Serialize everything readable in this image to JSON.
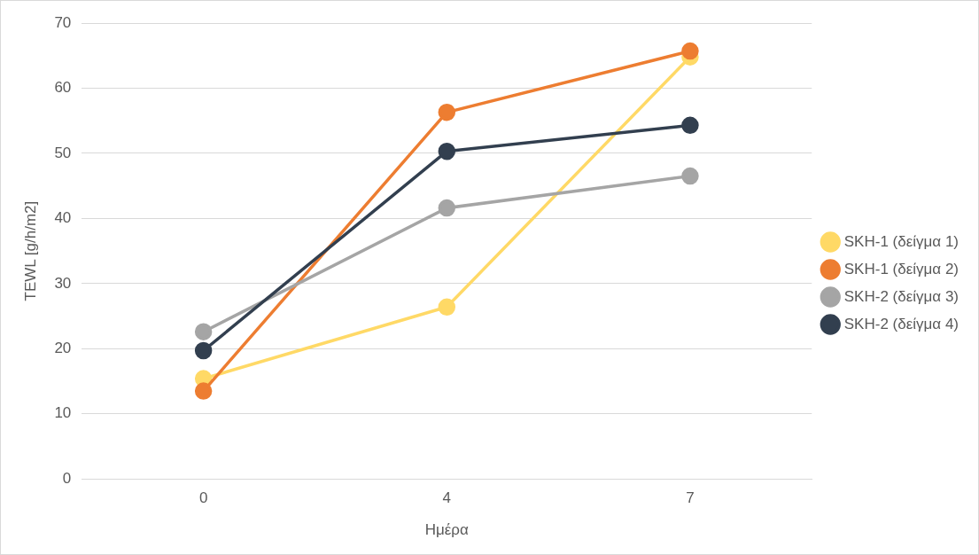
{
  "chart_data": {
    "type": "line",
    "xlabel": "Ημέρα",
    "ylabel": "TEWL [g/h/m2]",
    "categories": [
      "0",
      "4",
      "7"
    ],
    "series": [
      {
        "name": "SKH-1 (δείγμα 1)",
        "color": "#ffd966",
        "values": [
          15.4,
          26.4,
          64.8
        ]
      },
      {
        "name": "SKH-1 (δείγμα 2)",
        "color": "#ed7d31",
        "values": [
          13.5,
          56.3,
          65.7
        ]
      },
      {
        "name": "SKH-2 (δείγμα 3)",
        "color": "#a5a5a5",
        "values": [
          22.6,
          41.6,
          46.5
        ]
      },
      {
        "name": "SKH-2 (δείγμα 4)",
        "color": "#323f4f",
        "values": [
          19.7,
          50.3,
          54.3
        ]
      }
    ],
    "ylim": [
      0,
      70
    ],
    "yticks": [
      0,
      10,
      20,
      30,
      40,
      50,
      60,
      70
    ],
    "grid": "y",
    "legend": "right",
    "marker": "circle",
    "line_style": "solid"
  }
}
